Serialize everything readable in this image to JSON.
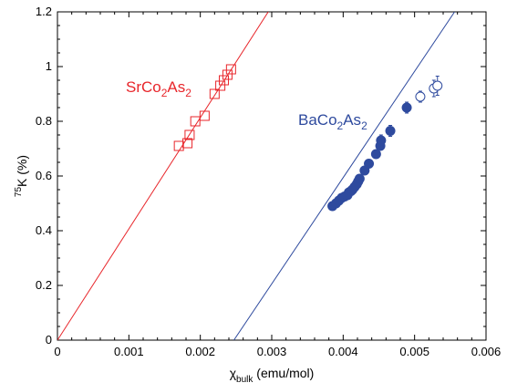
{
  "chart_data": {
    "type": "scatter",
    "xlabel": {
      "main": "χ",
      "sub": "bulk",
      "rest": " (emu/mol)"
    },
    "ylabel": {
      "sup": "75",
      "rest": "K (%)"
    },
    "xlim": [
      0,
      0.006
    ],
    "ylim": [
      0,
      1.2
    ],
    "x_ticks": [
      0,
      0.001,
      0.002,
      0.003,
      0.004,
      0.005,
      0.006
    ],
    "x_tick_labels": [
      "0",
      "0.001",
      "0.002",
      "0.003",
      "0.004",
      "0.005",
      "0.006"
    ],
    "y_ticks": [
      0,
      0.2,
      0.4,
      0.6,
      0.8,
      1.0,
      1.2
    ],
    "y_tick_labels": [
      "0",
      "0.2",
      "0.4",
      "0.6",
      "0.8",
      "1",
      "1.2"
    ],
    "grid": false,
    "series": [
      {
        "name": "SrCo2As2",
        "label_parts": [
          [
            "SrCo",
            false
          ],
          [
            "2",
            true
          ],
          [
            "As",
            false
          ],
          [
            "2",
            true
          ]
        ],
        "color": "#e8262b",
        "marker": "open-square",
        "points": [
          [
            0.0017,
            0.71
          ],
          [
            0.00182,
            0.72
          ],
          [
            0.00185,
            0.75
          ],
          [
            0.00193,
            0.8
          ],
          [
            0.00206,
            0.82
          ],
          [
            0.0022,
            0.9
          ],
          [
            0.00228,
            0.93
          ],
          [
            0.00233,
            0.95
          ],
          [
            0.00238,
            0.97
          ],
          [
            0.00243,
            0.99
          ]
        ],
        "fit": {
          "x": [
            0,
            0.003
          ],
          "y": [
            0,
            1.22
          ]
        }
      },
      {
        "name": "BaCo2As2",
        "label_parts": [
          [
            "BaCo",
            false
          ],
          [
            "2",
            true
          ],
          [
            "As",
            false
          ],
          [
            "2",
            true
          ]
        ],
        "color": "#2e4a9e",
        "marker": "filled-circle",
        "points": [
          [
            0.00385,
            0.49
          ],
          [
            0.0039,
            0.5
          ],
          [
            0.00394,
            0.51
          ],
          [
            0.00398,
            0.52
          ],
          [
            0.00402,
            0.525
          ],
          [
            0.00406,
            0.53
          ],
          [
            0.00408,
            0.54
          ],
          [
            0.00411,
            0.545
          ],
          [
            0.00413,
            0.55
          ],
          [
            0.00416,
            0.56
          ],
          [
            0.00419,
            0.57
          ],
          [
            0.00421,
            0.58
          ],
          [
            0.00423,
            0.59
          ],
          [
            0.0043,
            0.62
          ],
          [
            0.00436,
            0.645
          ],
          [
            0.00446,
            0.68
          ],
          [
            0.00452,
            0.71
          ],
          [
            0.00453,
            0.73
          ],
          [
            0.00466,
            0.765
          ],
          [
            0.00489,
            0.85
          ]
        ],
        "open_points": [
          {
            "x": 0.00508,
            "y": 0.89,
            "err": 0.02
          },
          {
            "x": 0.00527,
            "y": 0.92,
            "err": 0.03
          },
          {
            "x": 0.00532,
            "y": 0.93,
            "err": 0.035
          }
        ],
        "error_bars": [
          {
            "x": 0.00453,
            "y": 0.73,
            "err": 0.02
          },
          {
            "x": 0.00466,
            "y": 0.765,
            "err": 0.02
          },
          {
            "x": 0.00489,
            "y": 0.85,
            "err": 0.02
          }
        ],
        "fit": {
          "x": [
            0.00247,
            0.00556
          ],
          "y": [
            0,
            1.2
          ]
        }
      }
    ]
  }
}
